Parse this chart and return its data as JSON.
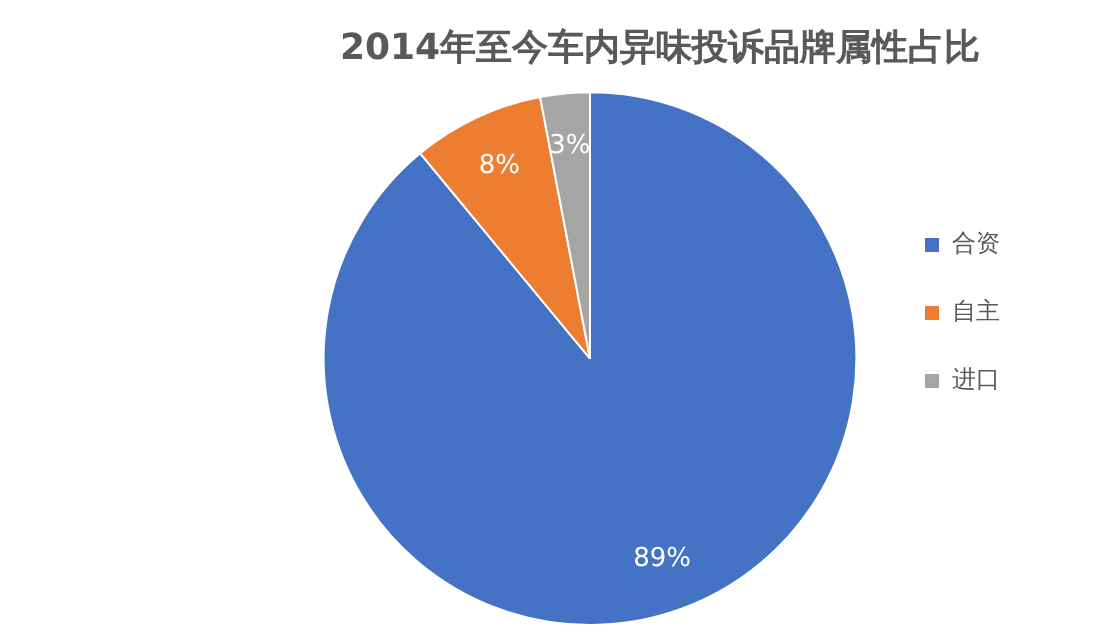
{
  "chart_data": {
    "type": "pie",
    "title": "2014年至今车内异味投诉品牌属性占比",
    "categories": [
      "合资",
      "自主",
      "进口"
    ],
    "values": [
      89,
      8,
      3
    ],
    "colors": [
      "#4472c4",
      "#ed7d31",
      "#a5a5a5"
    ],
    "value_labels": [
      "89%",
      "8%",
      "3%"
    ],
    "legend": "right"
  }
}
